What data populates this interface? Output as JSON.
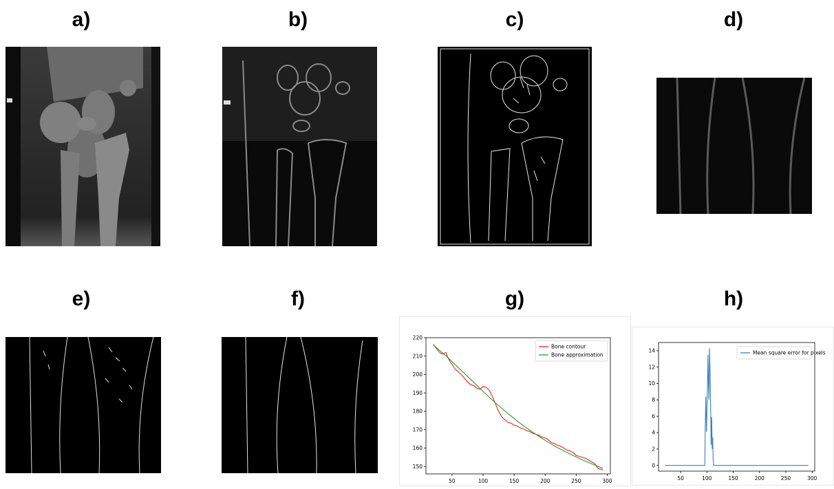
{
  "panel_labels": [
    "a)",
    "b)",
    "c)",
    "d)",
    "e)",
    "f)",
    "g)",
    "h)"
  ],
  "colors": {
    "contour": "#e8241d",
    "approximation": "#2a9a2a",
    "mse": "#3a7fb8"
  },
  "chart_data": [
    {
      "type": "line",
      "panel": "g)",
      "series": [
        {
          "name": "Bone contour",
          "color": "#e8241d",
          "x": [
            20,
            25,
            30,
            35,
            40,
            45,
            50,
            55,
            60,
            65,
            70,
            75,
            80,
            85,
            90,
            95,
            100,
            105,
            110,
            115,
            120,
            125,
            130,
            135,
            140,
            145,
            150,
            155,
            160,
            165,
            170,
            175,
            180,
            185,
            190,
            195,
            200,
            205,
            210,
            215,
            220,
            225,
            230,
            235,
            240,
            245,
            250,
            255,
            260,
            265,
            270,
            275,
            280,
            285,
            290,
            293
          ],
          "y": [
            216.5,
            214,
            212,
            211,
            212,
            208,
            205.5,
            203,
            201.5,
            200,
            198,
            196,
            194.5,
            194,
            192.5,
            192,
            193.5,
            193,
            191.5,
            188,
            184,
            180,
            177,
            175.5,
            174,
            173.5,
            172.5,
            172,
            171,
            170.5,
            169.5,
            169,
            168,
            167.5,
            167,
            166,
            165.5,
            164.5,
            163,
            162.5,
            161.5,
            161,
            160,
            159,
            158.5,
            157.5,
            156,
            155.5,
            155,
            154.5,
            153.5,
            152.5,
            151.5,
            149,
            148.5,
            148
          ]
        },
        {
          "name": "Bone approximation",
          "color": "#2a9a2a",
          "x": [
            20,
            40,
            60,
            80,
            100,
            120,
            140,
            160,
            180,
            200,
            220,
            240,
            260,
            280,
            293
          ],
          "y": [
            216,
            210.2,
            203.8,
            197.3,
            190.8,
            184.5,
            178.8,
            173.4,
            168.6,
            164.2,
            160.2,
            156.8,
            153.6,
            150.8,
            149
          ]
        }
      ],
      "xticks": [
        50,
        100,
        150,
        200,
        250,
        300
      ],
      "yticks": [
        150,
        160,
        170,
        180,
        190,
        200,
        210,
        220
      ],
      "xlim": [
        8,
        305
      ],
      "ylim": [
        146,
        220
      ],
      "legend": "top-right"
    },
    {
      "type": "line",
      "panel": "h)",
      "series": [
        {
          "name": "Mean square error for pixels",
          "color": "#3a7fb8",
          "x": [
            20,
            96,
            97,
            98,
            99,
            100,
            101,
            102,
            103,
            104,
            105,
            106,
            107,
            108,
            109,
            110,
            111,
            112,
            113,
            114,
            293
          ],
          "y": [
            0,
            0,
            5.5,
            8.4,
            4.1,
            6.3,
            9.5,
            13.5,
            10,
            8,
            14.3,
            11.5,
            7.3,
            2.5,
            5.9,
            2,
            3.4,
            0.6,
            0,
            0,
            0
          ]
        }
      ],
      "xticks": [
        50,
        100,
        150,
        200,
        250,
        300
      ],
      "yticks": [
        0,
        2,
        4,
        6,
        8,
        10,
        12,
        14
      ],
      "xlim": [
        8,
        305
      ],
      "ylim": [
        -0.7,
        15
      ],
      "legend": "top-right"
    }
  ]
}
